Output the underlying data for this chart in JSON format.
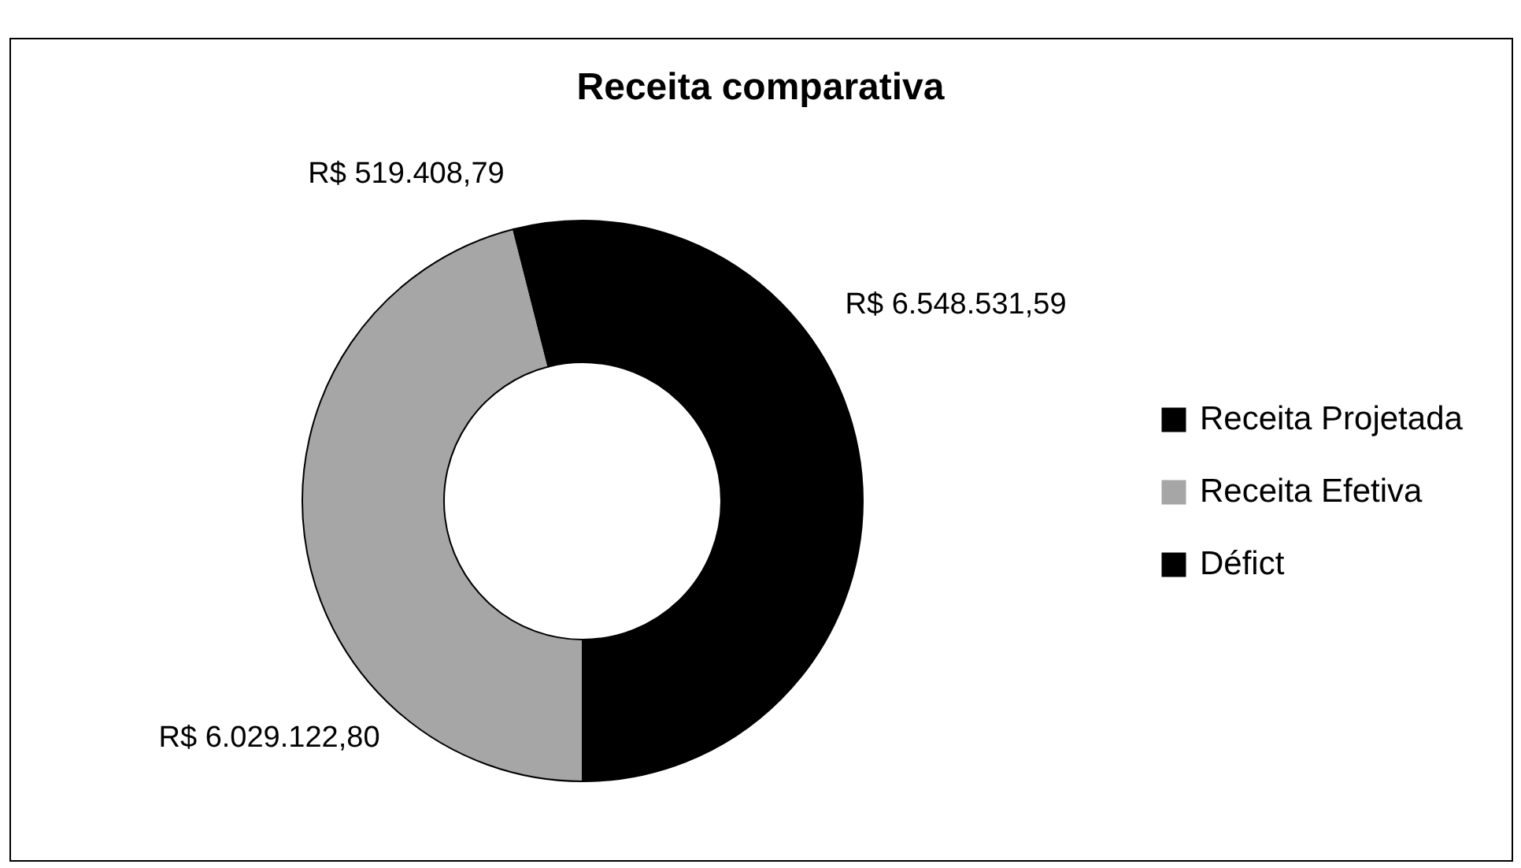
{
  "chart_data": {
    "type": "donut",
    "title": "Receita comparativa",
    "categories": [
      "Receita Projetada",
      "Receita Efetiva",
      "Défict"
    ],
    "values": [
      6548531.59,
      6029122.8,
      519408.79
    ],
    "value_labels": [
      "R$ 6.548.531,59",
      "R$ 6.029.122,80",
      "R$ 519.408,79"
    ],
    "colors": [
      "#000000",
      "#a6a6a6",
      "#000000"
    ],
    "legend": "right"
  }
}
